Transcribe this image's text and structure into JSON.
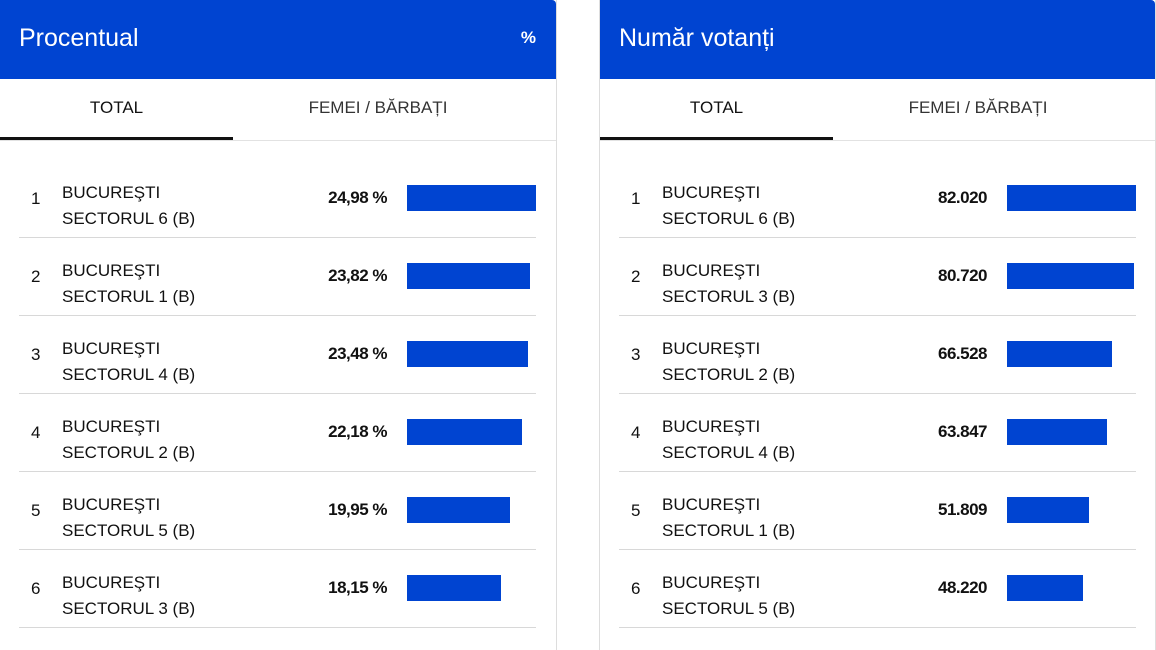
{
  "accent": "#0044d1",
  "panels": [
    {
      "title": "Procentual",
      "unit": "%",
      "tabs": [
        "TOTAL",
        "FEMEI / BĂRBAȚI"
      ],
      "rows": [
        {
          "rank": "1",
          "line1": "BUCUREŞTI",
          "line2": "SECTORUL 6 (B)",
          "value": "24,98 %",
          "num": 24.98
        },
        {
          "rank": "2",
          "line1": "BUCUREŞTI",
          "line2": "SECTORUL 1 (B)",
          "value": "23,82 %",
          "num": 23.82
        },
        {
          "rank": "3",
          "line1": "BUCUREŞTI",
          "line2": "SECTORUL 4 (B)",
          "value": "23,48 %",
          "num": 23.48
        },
        {
          "rank": "4",
          "line1": "BUCUREŞTI",
          "line2": "SECTORUL 2 (B)",
          "value": "22,18 %",
          "num": 22.18
        },
        {
          "rank": "5",
          "line1": "BUCUREŞTI",
          "line2": "SECTORUL 5 (B)",
          "value": "19,95 %",
          "num": 19.95
        },
        {
          "rank": "6",
          "line1": "BUCUREŞTI",
          "line2": "SECTORUL 3 (B)",
          "value": "18,15 %",
          "num": 18.15
        }
      ]
    },
    {
      "title": "Număr votanți",
      "unit": "",
      "tabs": [
        "TOTAL",
        "FEMEI / BĂRBAȚI"
      ],
      "rows": [
        {
          "rank": "1",
          "line1": "BUCUREŞTI",
          "line2": "SECTORUL 6 (B)",
          "value": "82.020",
          "num": 82020
        },
        {
          "rank": "2",
          "line1": "BUCUREŞTI",
          "line2": "SECTORUL 3 (B)",
          "value": "80.720",
          "num": 80720
        },
        {
          "rank": "3",
          "line1": "BUCUREŞTI",
          "line2": "SECTORUL 2 (B)",
          "value": "66.528",
          "num": 66528
        },
        {
          "rank": "4",
          "line1": "BUCUREŞTI",
          "line2": "SECTORUL 4 (B)",
          "value": "63.847",
          "num": 63847
        },
        {
          "rank": "5",
          "line1": "BUCUREŞTI",
          "line2": "SECTORUL 1 (B)",
          "value": "51.809",
          "num": 51809
        },
        {
          "rank": "6",
          "line1": "BUCUREŞTI",
          "line2": "SECTORUL 5 (B)",
          "value": "48.220",
          "num": 48220
        }
      ]
    }
  ]
}
